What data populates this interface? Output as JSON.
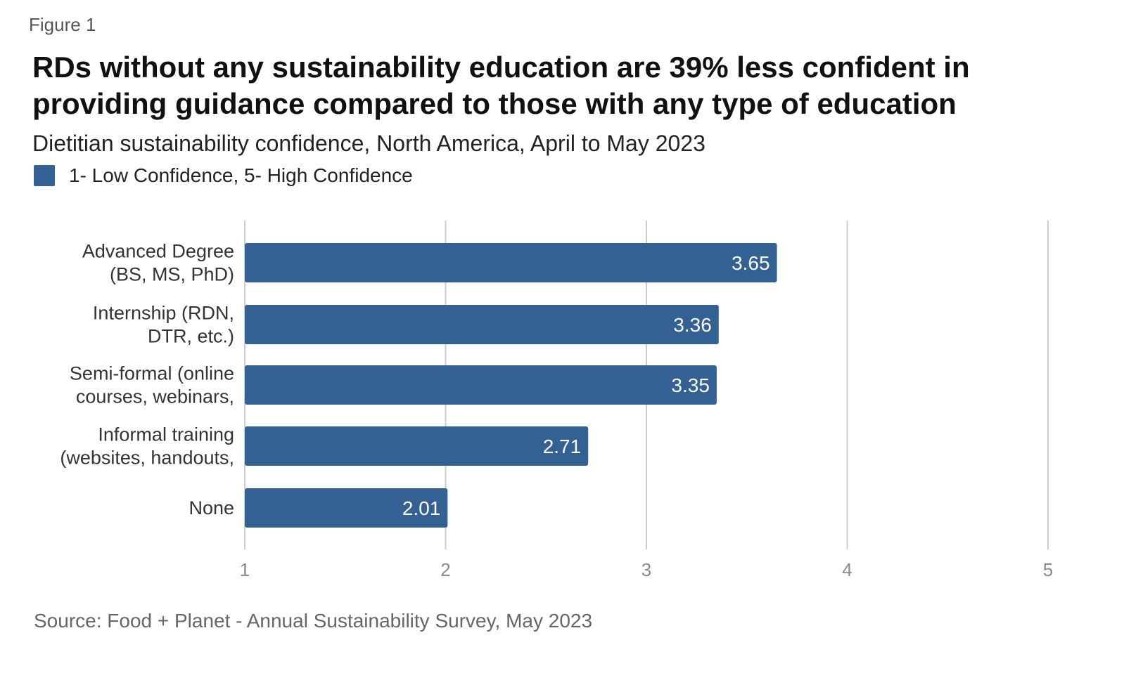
{
  "figure_label": "Figure 1",
  "title": "RDs without any sustainability education are 39% less confident in providing guidance compared to those with any type of education",
  "subtitle": "Dietitian sustainability confidence, North America, April to May 2023",
  "legend": {
    "label": "1- Low Confidence, 5- High Confidence",
    "color": "#336193"
  },
  "source": "Source: Food + Planet - Annual Sustainability Survey, May 2023",
  "chart_data": {
    "type": "bar",
    "orientation": "horizontal",
    "categories": [
      [
        "Advanced Degree",
        "(BS, MS, PhD)"
      ],
      [
        "Internship (RDN,",
        "DTR, etc.)"
      ],
      [
        "Semi-formal (online",
        "courses, webinars,"
      ],
      [
        "Informal training",
        "(websites, handouts,"
      ],
      [
        "None"
      ]
    ],
    "series": [
      {
        "name": "1- Low Confidence, 5- High Confidence",
        "values": [
          3.65,
          3.36,
          3.35,
          2.71,
          2.01
        ],
        "color": "#336193"
      }
    ],
    "value_labels": [
      "3.65",
      "3.36",
      "3.35",
      "2.71",
      "2.01"
    ],
    "xlim": [
      1,
      5
    ],
    "xticks": [
      1,
      2,
      3,
      4,
      5
    ],
    "grid": true,
    "legend_position": "top-left",
    "title": "RDs without any sustainability education are 39% less confident in providing guidance compared to those with any type of education",
    "xlabel": "",
    "ylabel": ""
  }
}
